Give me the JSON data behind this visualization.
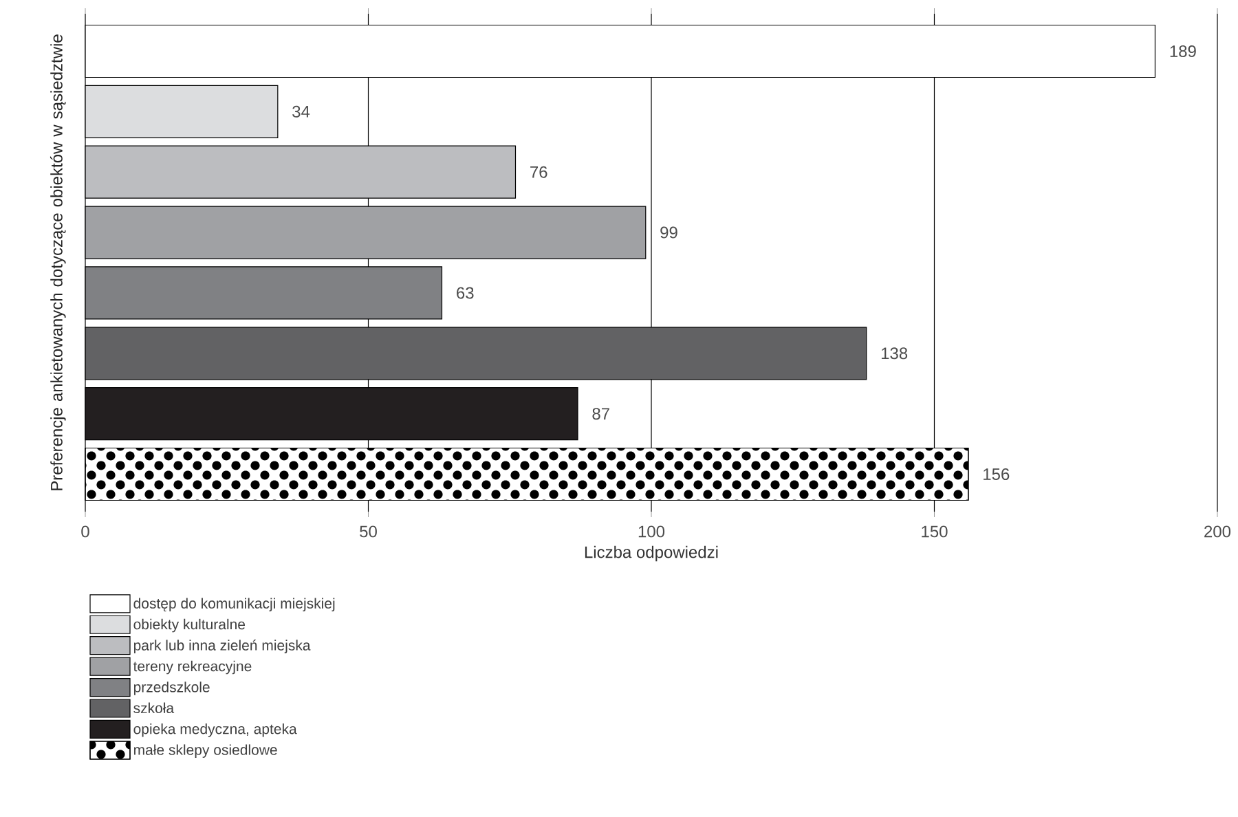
{
  "chart_data": {
    "type": "bar",
    "orientation": "horizontal",
    "xlabel": "Liczba odpowiedzi",
    "ylabel": "Preferencje ankietowanych dotyczące obiektów w sąsiedztwie",
    "categories": [
      null,
      null,
      null,
      null,
      null,
      null,
      null,
      null
    ],
    "series": [
      {
        "name": "dostęp do komunikacji miejskiej",
        "color": "#ffffff",
        "values": [
          189,
          null,
          null,
          null,
          null,
          null,
          null,
          null
        ]
      },
      {
        "name": "obiekty kulturalne",
        "color": "#dcdddf",
        "values": [
          null,
          34,
          null,
          null,
          null,
          null,
          null,
          null
        ]
      },
      {
        "name": "park lub inna zieleń miejska",
        "color": "#bcbdc0",
        "values": [
          null,
          null,
          76,
          null,
          null,
          null,
          null,
          null
        ]
      },
      {
        "name": "tereny rekreacyjne",
        "color": "#a0a1a4",
        "values": [
          null,
          null,
          null,
          99,
          null,
          null,
          null,
          null
        ]
      },
      {
        "name": "przedszkole",
        "color": "#808184",
        "values": [
          null,
          null,
          null,
          null,
          63,
          null,
          null,
          null
        ]
      },
      {
        "name": "szkoła",
        "color": "#626264",
        "values": [
          null,
          null,
          null,
          null,
          null,
          138,
          null,
          null
        ]
      },
      {
        "name": "opieka medyczna, apteka",
        "color": "#231f20",
        "values": [
          null,
          null,
          null,
          null,
          null,
          null,
          87,
          null
        ]
      },
      {
        "name": "małe sklepy osiedlowe",
        "color": "#000000",
        "values": [
          null,
          null,
          null,
          null,
          null,
          null,
          null,
          156
        ]
      }
    ],
    "xlim": [
      0,
      200
    ],
    "xticks": [
      0,
      50,
      100,
      150,
      200
    ],
    "grid": "x",
    "legend": "bottom left",
    "data_labels": true
  }
}
